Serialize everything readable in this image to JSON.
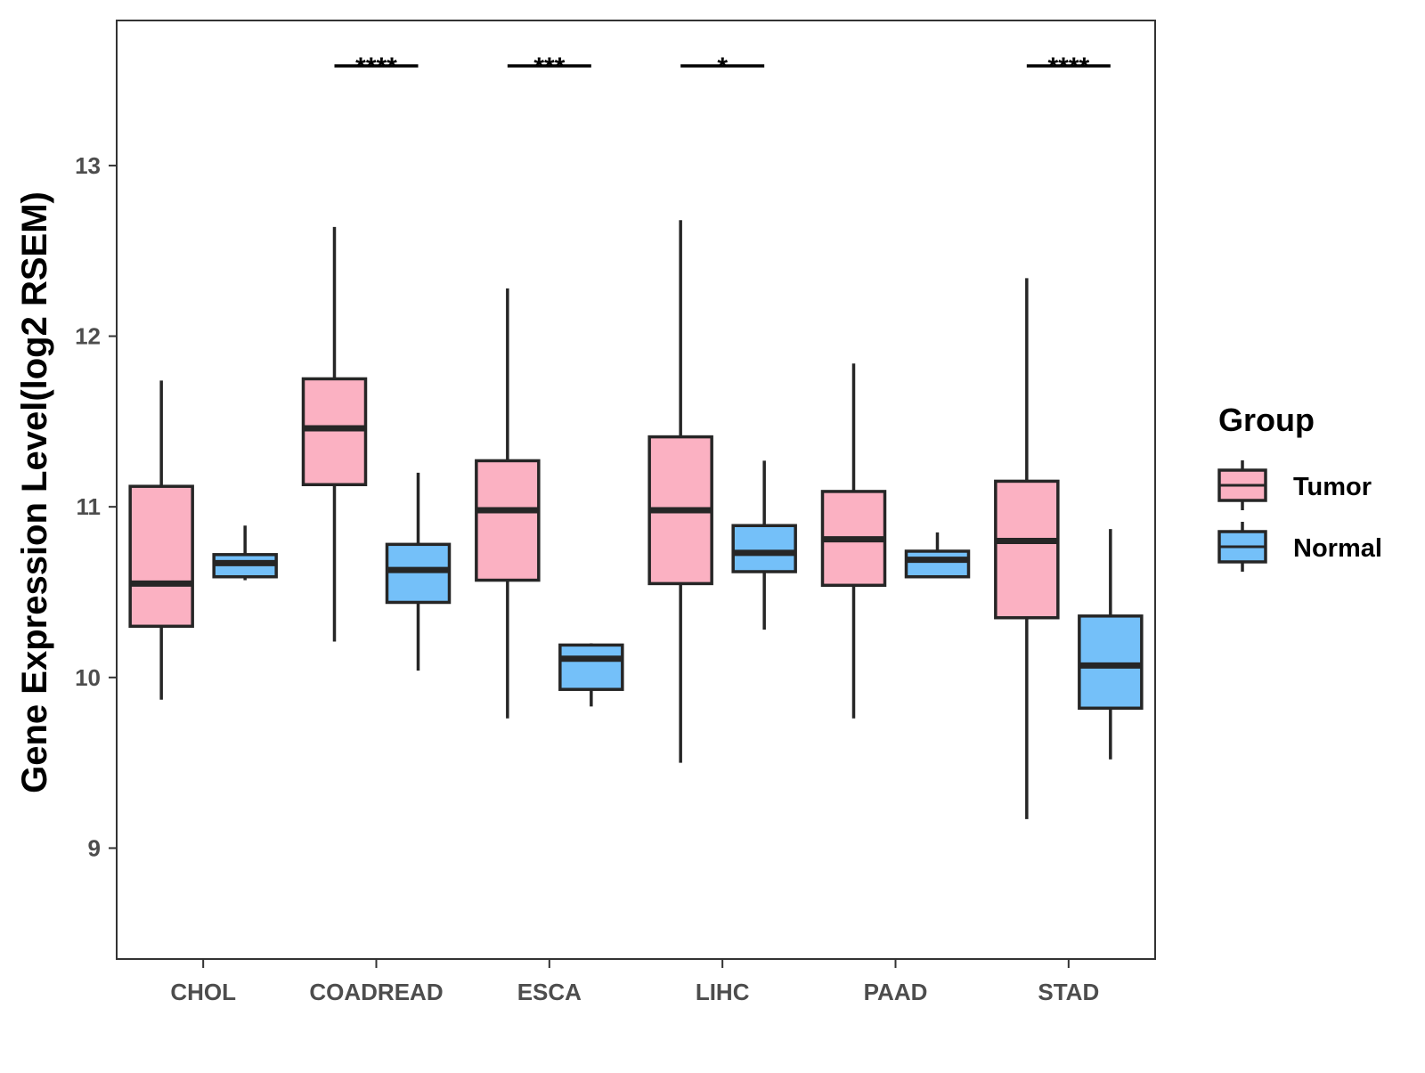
{
  "chart_data": {
    "type": "boxplot",
    "title": "",
    "xlabel": "",
    "ylabel": "Gene Expression Level(log2 RSEM)",
    "ylim": [
      8.35,
      13.85
    ],
    "yticks": [
      9,
      10,
      11,
      12,
      13
    ],
    "ytick_labels": [
      "9",
      "10",
      "11",
      "12",
      "13"
    ],
    "grid": false,
    "categories": [
      "CHOL",
      "COADREAD",
      "ESCA",
      "LIHC",
      "PAAD",
      "STAD"
    ],
    "legend": {
      "title": "Group",
      "position": "right",
      "entries": [
        "Tumor",
        "Normal"
      ]
    },
    "colors": {
      "Tumor": "#fbb1c2",
      "Normal": "#74c0f9",
      "outline": "#262626"
    },
    "series": [
      {
        "name": "Tumor",
        "boxes": [
          {
            "category": "CHOL",
            "min": 9.87,
            "q1": 10.3,
            "median": 10.55,
            "q3": 11.12,
            "max": 11.74
          },
          {
            "category": "COADREAD",
            "min": 10.21,
            "q1": 11.13,
            "median": 11.46,
            "q3": 11.75,
            "max": 12.64
          },
          {
            "category": "ESCA",
            "min": 9.76,
            "q1": 10.57,
            "median": 10.98,
            "q3": 11.27,
            "max": 12.28
          },
          {
            "category": "LIHC",
            "min": 9.5,
            "q1": 10.55,
            "median": 10.98,
            "q3": 11.41,
            "max": 12.68
          },
          {
            "category": "PAAD",
            "min": 9.76,
            "q1": 10.54,
            "median": 10.81,
            "q3": 11.09,
            "max": 11.84
          },
          {
            "category": "STAD",
            "min": 9.17,
            "q1": 10.35,
            "median": 10.8,
            "q3": 11.15,
            "max": 12.34
          }
        ]
      },
      {
        "name": "Normal",
        "boxes": [
          {
            "category": "CHOL",
            "min": 10.57,
            "q1": 10.59,
            "median": 10.67,
            "q3": 10.72,
            "max": 10.89
          },
          {
            "category": "COADREAD",
            "min": 10.04,
            "q1": 10.44,
            "median": 10.63,
            "q3": 10.78,
            "max": 11.2
          },
          {
            "category": "ESCA",
            "min": 9.83,
            "q1": 9.93,
            "median": 10.11,
            "q3": 10.19,
            "max": 10.2
          },
          {
            "category": "LIHC",
            "min": 10.28,
            "q1": 10.62,
            "median": 10.73,
            "q3": 10.89,
            "max": 11.27
          },
          {
            "category": "PAAD",
            "min": 10.59,
            "q1": 10.59,
            "median": 10.69,
            "q3": 10.74,
            "max": 10.85
          },
          {
            "category": "STAD",
            "min": 9.52,
            "q1": 9.82,
            "median": 10.07,
            "q3": 10.36,
            "max": 10.87
          }
        ]
      }
    ],
    "significance": [
      {
        "category": "COADREAD",
        "label": "****"
      },
      {
        "category": "ESCA",
        "label": "***"
      },
      {
        "category": "LIHC",
        "label": "*"
      },
      {
        "category": "STAD",
        "label": "****"
      }
    ]
  }
}
